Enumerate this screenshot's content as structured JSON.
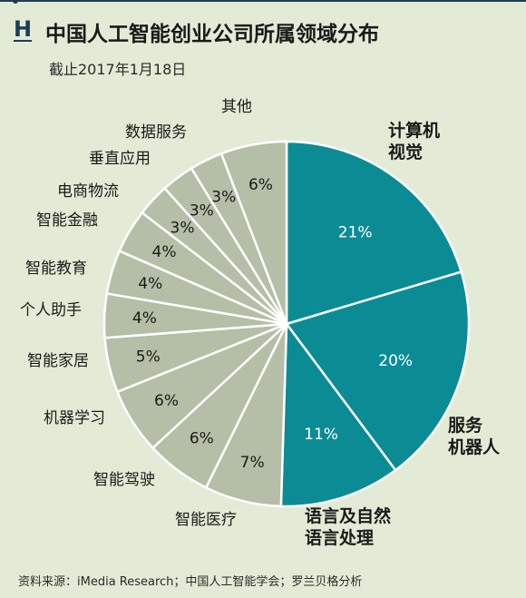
{
  "header": {
    "panel_letter": "H",
    "title": "中国人工智能创业公司所属领域分布",
    "subtitle": "截止2017年1月18日"
  },
  "source": "资料来源：iMedia Research；中国人工智能学会；罗兰贝格分析",
  "colors": {
    "background": "#e3ebd6",
    "highlight": "#0b8c95",
    "muted": "#b5bea6",
    "edge": "#ffffff",
    "accent_dark": "#1c3d57"
  },
  "chart_data": {
    "type": "pie",
    "title": "中国人工智能创业公司所属领域分布",
    "unit": "%",
    "start": "12 o'clock",
    "direction": "clockwise",
    "slices": [
      {
        "category": "计算机视觉",
        "label_lines": [
          "计算机",
          "视觉"
        ],
        "value": 21,
        "value_label": "21%",
        "highlight": true
      },
      {
        "category": "服务机器人",
        "label_lines": [
          "服务",
          "机器人"
        ],
        "value": 20,
        "value_label": "20%",
        "highlight": true
      },
      {
        "category": "语言及自然语言处理",
        "label_lines": [
          "语言及自然",
          "语言处理"
        ],
        "value": 11,
        "value_label": "11%",
        "highlight": true
      },
      {
        "category": "智能医疗",
        "label_lines": [
          "智能医疗"
        ],
        "value": 7,
        "value_label": "7%",
        "highlight": false
      },
      {
        "category": "智能驾驶",
        "label_lines": [
          "智能驾驶"
        ],
        "value": 6,
        "value_label": "6%",
        "highlight": false
      },
      {
        "category": "机器学习",
        "label_lines": [
          "机器学习"
        ],
        "value": 6,
        "value_label": "6%",
        "highlight": false
      },
      {
        "category": "智能家居",
        "label_lines": [
          "智能家居"
        ],
        "value": 5,
        "value_label": "5%",
        "highlight": false
      },
      {
        "category": "个人助手",
        "label_lines": [
          "个人助手"
        ],
        "value": 4,
        "value_label": "4%",
        "highlight": false
      },
      {
        "category": "智能教育",
        "label_lines": [
          "智能教育"
        ],
        "value": 4,
        "value_label": "4%",
        "highlight": false
      },
      {
        "category": "智能金融",
        "label_lines": [
          "智能金融"
        ],
        "value": 4,
        "value_label": "4%",
        "highlight": false
      },
      {
        "category": "电商物流",
        "label_lines": [
          "电商物流"
        ],
        "value": 3,
        "value_label": "3%",
        "highlight": false
      },
      {
        "category": "垂直应用",
        "label_lines": [
          "垂直应用"
        ],
        "value": 3,
        "value_label": "3%",
        "highlight": false
      },
      {
        "category": "数据服务",
        "label_lines": [
          "数据服务"
        ],
        "value": 3,
        "value_label": "3%",
        "highlight": false
      },
      {
        "category": "其他",
        "label_lines": [
          "其他"
        ],
        "value": 6,
        "value_label": "6%",
        "highlight": false
      }
    ]
  }
}
